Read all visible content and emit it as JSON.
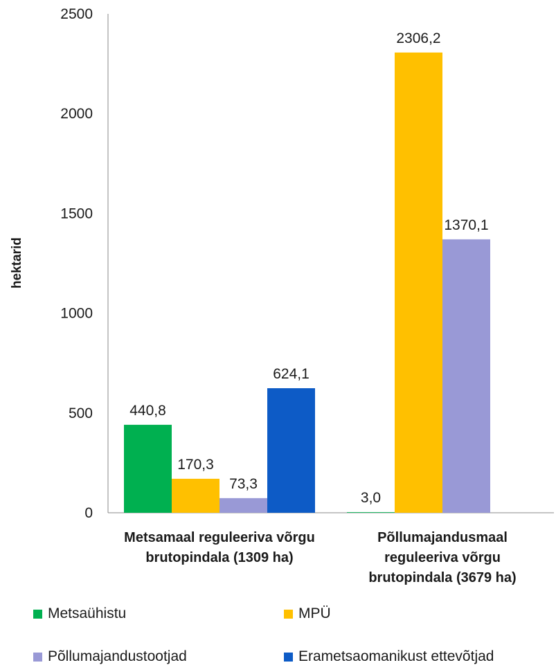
{
  "chart_data": {
    "type": "bar",
    "ylabel": "hektarid",
    "ylim": [
      0,
      2500
    ],
    "yticks": [
      "0",
      "500",
      "1000",
      "1500",
      "2000",
      "2500"
    ],
    "categories": [
      [
        "Metsamaal reguleeriva võrgu",
        "brutopindala (1309 ha)"
      ],
      [
        "Põllumajandusmaal",
        "reguleeriva võrgu",
        "brutopindala (3679 ha)"
      ]
    ],
    "series": [
      {
        "name": "Metsaühistu",
        "color": "#00b050",
        "values": [
          440.8,
          3.0
        ],
        "labels": [
          "440,8",
          "3,0"
        ]
      },
      {
        "name": "MPÜ",
        "color": "#ffc000",
        "values": [
          170.3,
          2306.2
        ],
        "labels": [
          "170,3",
          "2306,2"
        ]
      },
      {
        "name": "Põllumajandustootjad",
        "color": "#9999d6",
        "values": [
          73.3,
          1370.1
        ],
        "labels": [
          "73,3",
          "1370,1"
        ]
      },
      {
        "name": "Erametsaomanikust ettevõtjad",
        "color": "#0d5bc6",
        "values": [
          624.1,
          null
        ],
        "labels": [
          "624,1",
          ""
        ]
      }
    ],
    "legend": "bottom",
    "grid": false
  }
}
